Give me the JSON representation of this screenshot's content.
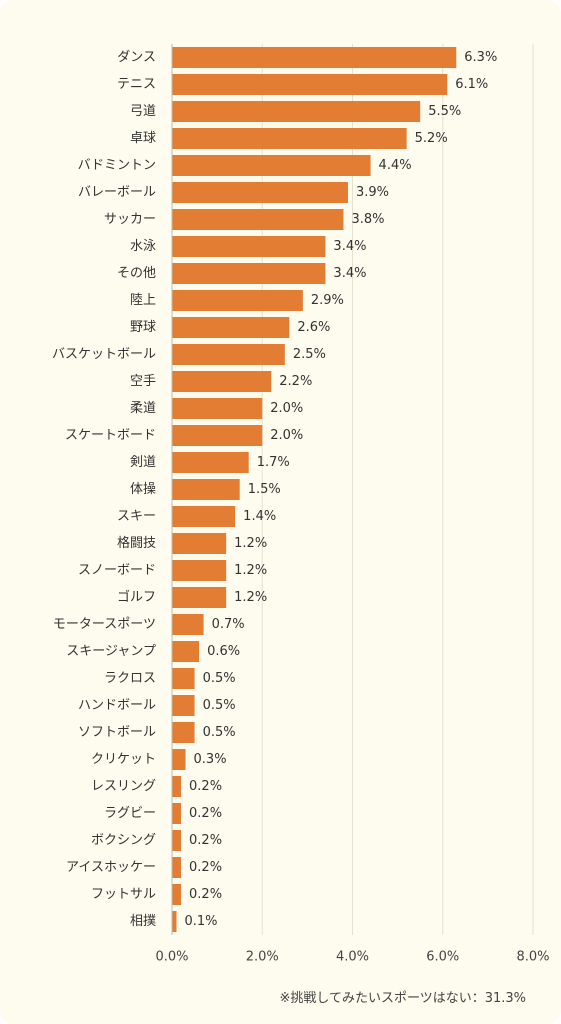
{
  "chart_data": {
    "type": "bar",
    "orientation": "horizontal",
    "categories": [
      "ダンス",
      "テニス",
      "弓道",
      "卓球",
      "バドミントン",
      "バレーボール",
      "サッカー",
      "水泳",
      "その他",
      "陸上",
      "野球",
      "バスケットボール",
      "空手",
      "柔道",
      "スケートボード",
      "剣道",
      "体操",
      "スキー",
      "格闘技",
      "スノーボード",
      "ゴルフ",
      "モータースポーツ",
      "スキージャンプ",
      "ラクロス",
      "ハンドボール",
      "ソフトボール",
      "クリケット",
      "レスリング",
      "ラグビー",
      "ボクシング",
      "アイスホッケー",
      "フットサル",
      "相撲"
    ],
    "values": [
      6.3,
      6.1,
      5.5,
      5.2,
      4.4,
      3.9,
      3.8,
      3.4,
      3.4,
      2.9,
      2.6,
      2.5,
      2.2,
      2.0,
      2.0,
      1.7,
      1.5,
      1.4,
      1.2,
      1.2,
      1.2,
      0.7,
      0.6,
      0.5,
      0.5,
      0.5,
      0.3,
      0.2,
      0.2,
      0.2,
      0.2,
      0.2,
      0.1
    ],
    "value_labels": [
      "6.3%",
      "6.1%",
      "5.5%",
      "5.2%",
      "4.4%",
      "3.9%",
      "3.8%",
      "3.4%",
      "3.4%",
      "2.9%",
      "2.6%",
      "2.5%",
      "2.2%",
      "2.0%",
      "2.0%",
      "1.7%",
      "1.5%",
      "1.4%",
      "1.2%",
      "1.2%",
      "1.2%",
      "0.7%",
      "0.6%",
      "0.5%",
      "0.5%",
      "0.5%",
      "0.3%",
      "0.2%",
      "0.2%",
      "0.2%",
      "0.2%",
      "0.2%",
      "0.1%"
    ],
    "xlim": [
      0,
      8
    ],
    "xticks": [
      0,
      2,
      4,
      6,
      8
    ],
    "xtick_labels": [
      "0.0%",
      "2.0%",
      "4.0%",
      "6.0%",
      "8.0%"
    ],
    "grid": "vertical",
    "bar_color": "#e47d34",
    "note": "※挑戦してみたいスポーツはない：31.3%"
  }
}
